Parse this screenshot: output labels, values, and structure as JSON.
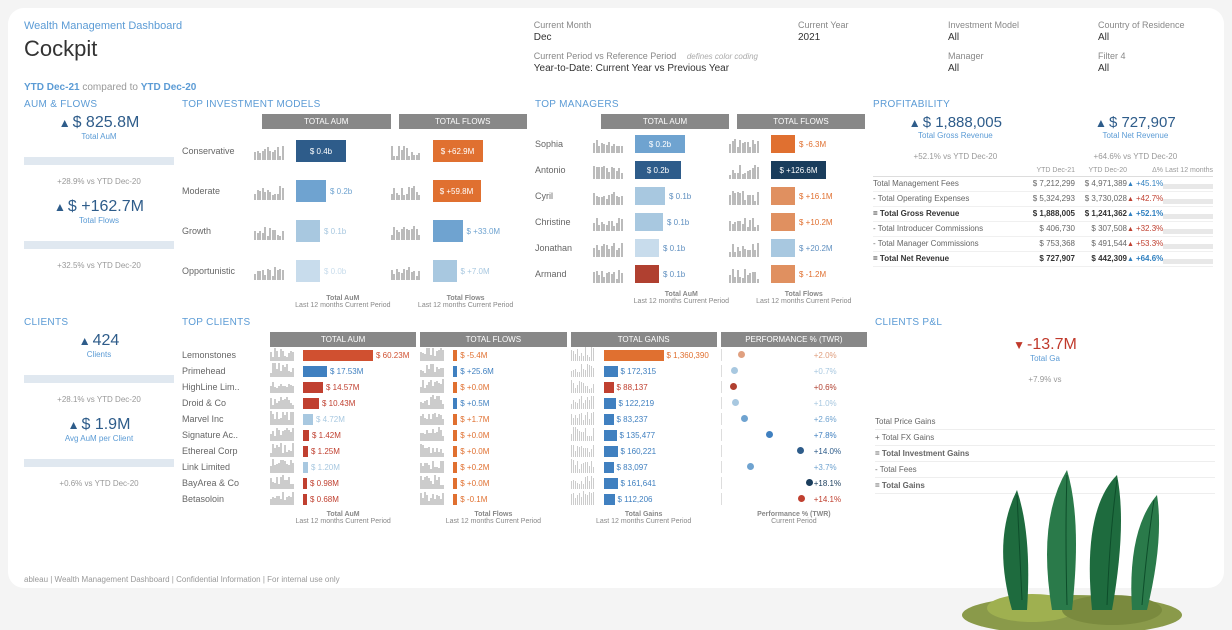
{
  "subtitle": "Wealth Management Dashboard",
  "title": "Cockpit",
  "filters": {
    "currentMonth": {
      "label": "Current Month",
      "value": "Dec"
    },
    "currentYear": {
      "label": "Current Year",
      "value": "2021"
    },
    "investmentModel": {
      "label": "Investment Model",
      "value": "All"
    },
    "countryOfResidence": {
      "label": "Country of Residence",
      "value": "All"
    },
    "periodRef": {
      "label": "Current Period vs Reference Period",
      "value": "Year-to-Date: Current Year vs Previous Year",
      "note": "defines color coding"
    },
    "manager": {
      "label": "Manager",
      "value": "All"
    },
    "filter4": {
      "label": "Filter 4",
      "value": "All"
    }
  },
  "periodLine": {
    "prefix": "YTD Dec-21",
    "mid": "compared to",
    "suffix": "YTD Dec-20"
  },
  "aumFlows": {
    "title": "AuM & FLOWS",
    "totalAum": {
      "value": "$ 825.8M",
      "label": "Total AuM",
      "compare": "+28.9% vs YTD Dec-20"
    },
    "totalFlows": {
      "value": "$ +162.7M",
      "label": "Total Flows",
      "compare": "+32.5% vs YTD Dec-20"
    }
  },
  "topModels": {
    "title": "TOP INVESTMENT MODELS",
    "hdrAum": "TOTAL AUM",
    "hdrFlows": "TOTAL FLOWS",
    "rows": [
      {
        "name": "Conservative",
        "aum": "$ 0.4b",
        "aumW": 50,
        "aumC": "#2e5c8a",
        "flows": "$ +62.9M",
        "flowsW": 50,
        "flowsC": "#e07030"
      },
      {
        "name": "Moderate",
        "aum": "$ 0.2b",
        "aumW": 30,
        "aumC": "#6fa3d0",
        "flows": "$ +59.8M",
        "flowsW": 48,
        "flowsC": "#e07030"
      },
      {
        "name": "Growth",
        "aum": "$ 0.1b",
        "aumW": 18,
        "aumC": "#a8c8e0",
        "flows": "$ +33.0M",
        "flowsW": 30,
        "flowsC": "#6fa3d0"
      },
      {
        "name": "Opportunistic",
        "aum": "$ 0.0b",
        "aumW": 8,
        "aumC": "#c8dcec",
        "flows": "$ +7.0M",
        "flowsW": 10,
        "flowsC": "#a8c8e0"
      }
    ],
    "foot": {
      "aum1": "Total AuM",
      "aum2": "Last 12 months Current Period",
      "fl1": "Total Flows",
      "fl2": "Last 12 months   Current Period"
    }
  },
  "topManagers": {
    "title": "TOP MANAGERS",
    "hdrAum": "TOTAL AUM",
    "hdrFlows": "TOTAL FLOWS",
    "rows": [
      {
        "name": "Sophia",
        "aum": "$ 0.2b",
        "aumW": 50,
        "aumC": "#6fa3d0",
        "flows": "$ -6.3M",
        "flowsW": 10,
        "flowsC": "#e07030",
        "flowsTxtC": "#e07030"
      },
      {
        "name": "Antonio",
        "aum": "$ 0.2b",
        "aumW": 46,
        "aumC": "#2e5c8a",
        "flows": "$ +126.6M",
        "flowsW": 55,
        "flowsC": "#1a3d5c",
        "flowsInside": true
      },
      {
        "name": "Cyril",
        "aum": "$ 0.1b",
        "aumW": 30,
        "aumC": "#a8c8e0",
        "flows": "$ +16.1M",
        "flowsW": 14,
        "flowsC": "#e09060",
        "flowsTxtC": "#e07030"
      },
      {
        "name": "Christine",
        "aum": "$ 0.1b",
        "aumW": 28,
        "aumC": "#a8c8e0",
        "flows": "$ +10.2M",
        "flowsW": 11,
        "flowsC": "#e09060",
        "flowsTxtC": "#e07030"
      },
      {
        "name": "Jonathan",
        "aum": "$ 0.1b",
        "aumW": 24,
        "aumC": "#c8dcec",
        "flows": "$ +20.2M",
        "flowsW": 18,
        "flowsC": "#a8c8e0",
        "flowsTxtC": "#6090c0"
      },
      {
        "name": "Armand",
        "aum": "$ 0.1b",
        "aumW": 22,
        "aumC": "#b04030",
        "flows": "$ -1.2M",
        "flowsW": 6,
        "flowsC": "#e09060",
        "flowsTxtC": "#e07030"
      }
    ],
    "foot": {
      "aum1": "Total AuM",
      "aum2": "Last 12 months   Current Period",
      "fl1": "Total Flows",
      "fl2": "Last 12 months   Current Period"
    }
  },
  "profitability": {
    "title": "PROFITABILITY",
    "gross": {
      "value": "$ 1,888,005",
      "label": "Total Gross Revenue",
      "compare": "+52.1% vs YTD Dec-20"
    },
    "net": {
      "value": "$ 727,907",
      "label": "Total Net Revenue",
      "compare": "+64.6% vs YTD Dec-20"
    },
    "tableHdr": {
      "c1": "",
      "c2": "YTD Dec-21",
      "c3": "YTD Dec-20",
      "c4": "Δ%",
      "c5": "Last 12 months"
    },
    "rows": [
      {
        "name": "Total Management Fees",
        "v1": "$ 7,212,299",
        "v2": "$ 4,971,389",
        "d": "+45.1%",
        "dC": "up"
      },
      {
        "name": "- Total Operating Expenses",
        "v1": "$ 5,324,293",
        "v2": "$ 3,730,028",
        "d": "+42.7%",
        "dC": "dn"
      },
      {
        "name": "= Total Gross Revenue",
        "v1": "$ 1,888,005",
        "v2": "$ 1,241,362",
        "d": "+52.1%",
        "dC": "up",
        "bold": true
      },
      {
        "name": "- Total Introducer Commissions",
        "v1": "$ 406,730",
        "v2": "$ 307,508",
        "d": "+32.3%",
        "dC": "dn"
      },
      {
        "name": "- Total Manager Commissions",
        "v1": "$ 753,368",
        "v2": "$ 491,544",
        "d": "+53.3%",
        "dC": "dn"
      },
      {
        "name": "= Total Net Revenue",
        "v1": "$ 727,907",
        "v2": "$ 442,309",
        "d": "+64.6%",
        "dC": "up",
        "bold": true
      }
    ]
  },
  "clients": {
    "title": "CLIENTS",
    "count": {
      "value": "424",
      "label": "Clients",
      "compare": "+28.1% vs YTD Dec-20"
    },
    "avg": {
      "value": "$ 1.9M",
      "label": "Avg AuM per Client",
      "compare": "+0.6% vs YTD Dec-20"
    }
  },
  "topClients": {
    "title": "TOP CLIENTS",
    "hdr": {
      "aum": "TOTAL AUM",
      "flows": "TOTAL FLOWS",
      "gains": "TOTAL GAINS",
      "perf": "PERFORMANCE % (TWR)"
    },
    "rows": [
      {
        "name": "Lemonstones",
        "aum": "$ 60.23M",
        "aumW": 70,
        "aumC": "#d05030",
        "flows": "$ -5.4M",
        "flowsC": "#e07030",
        "gains": "$ 1,360,390",
        "gainsW": 60,
        "gainsC": "#e07030",
        "perf": "+2.0%",
        "perfC": "#e0a080",
        "perfP": 18
      },
      {
        "name": "Primehead",
        "aum": "$ 17.53M",
        "aumW": 24,
        "aumC": "#4080c0",
        "flows": "$ +25.6M",
        "flowsC": "#4080c0",
        "gains": "$ 172,315",
        "gainsW": 14,
        "gainsC": "#4080c0",
        "perf": "+0.7%",
        "perfC": "#a8c8e0",
        "perfP": 10
      },
      {
        "name": "HighLine Lim..",
        "aum": "$ 14.57M",
        "aumW": 20,
        "aumC": "#c04030",
        "flows": "$ +0.0M",
        "flowsC": "#e07030",
        "gains": "$ 88,137",
        "gainsW": 10,
        "gainsC": "#c04030",
        "perf": "+0.6%",
        "perfC": "#b04030",
        "perfP": 9
      },
      {
        "name": "Droid & Co",
        "aum": "$ 10.43M",
        "aumW": 16,
        "aumC": "#c04030",
        "flows": "$ +0.5M",
        "flowsC": "#4080c0",
        "gains": "$ 122,219",
        "gainsW": 12,
        "gainsC": "#4080c0",
        "perf": "+1.0%",
        "perfC": "#a8c8e0",
        "perfP": 12
      },
      {
        "name": "Marvel Inc",
        "aum": "$ 4.72M",
        "aumW": 10,
        "aumC": "#a8c8e0",
        "flows": "$ +1.7M",
        "flowsC": "#e07030",
        "gains": "$ 83,237",
        "gainsW": 10,
        "gainsC": "#4080c0",
        "perf": "+2.6%",
        "perfC": "#6fa3d0",
        "perfP": 22
      },
      {
        "name": "Signature Ac..",
        "aum": "$ 1.42M",
        "aumW": 6,
        "aumC": "#c04030",
        "flows": "$ +0.0M",
        "flowsC": "#e07030",
        "gains": "$ 135,477",
        "gainsW": 13,
        "gainsC": "#4080c0",
        "perf": "+7.8%",
        "perfC": "#4080c0",
        "perfP": 50
      },
      {
        "name": "Ethereal Corp",
        "aum": "$ 1.25M",
        "aumW": 5,
        "aumC": "#c04030",
        "flows": "$ +0.0M",
        "flowsC": "#e07030",
        "gains": "$ 160,221",
        "gainsW": 14,
        "gainsC": "#4080c0",
        "perf": "+14.0%",
        "perfC": "#2e5c8a",
        "perfP": 85
      },
      {
        "name": "Link Limited",
        "aum": "$ 1.20M",
        "aumW": 5,
        "aumC": "#a8c8e0",
        "flows": "$ +0.2M",
        "flowsC": "#e07030",
        "gains": "$ 83,097",
        "gainsW": 10,
        "gainsC": "#4080c0",
        "perf": "+3.7%",
        "perfC": "#6fa3d0",
        "perfP": 28
      },
      {
        "name": "BayArea & Co",
        "aum": "$ 0.98M",
        "aumW": 4,
        "aumC": "#c04030",
        "flows": "$ +0.0M",
        "flowsC": "#e07030",
        "gains": "$ 161,641",
        "gainsW": 14,
        "gainsC": "#4080c0",
        "perf": "+18.1%",
        "perfC": "#1a3d5c",
        "perfP": 95
      },
      {
        "name": "Betasoloin",
        "aum": "$ 0.68M",
        "aumW": 4,
        "aumC": "#c04030",
        "flows": "$ -0.1M",
        "flowsC": "#e07030",
        "gains": "$ 112,206",
        "gainsW": 11,
        "gainsC": "#4080c0",
        "perf": "+14.1%",
        "perfC": "#c04030",
        "perfP": 86
      }
    ],
    "foot": {
      "aum": "Total AuM",
      "aum2": "Last 12 months Current Period",
      "fl": "Total Flows",
      "fl2": "Last 12 months   Current Period",
      "gn": "Total Gains",
      "gn2": "Last 12 months   Current Period",
      "pf": "Performance % (TWR)",
      "pf2": "Current Period"
    }
  },
  "clientsPL": {
    "title": "CLIENTS P&L",
    "kpi": {
      "value": "-13.7M",
      "label": "Total Ga",
      "compare": "+7.9% vs"
    },
    "rows": [
      {
        "name": "Total Price Gains"
      },
      {
        "name": "+ Total FX Gains"
      },
      {
        "name": "= Total Investment Gains",
        "bold": true
      },
      {
        "name": "- Total Fees"
      },
      {
        "name": "= Total Gains",
        "bold": true
      }
    ]
  },
  "footer": "ableau | Wealth Management Dashboard | Confidential Information | For internal use only"
}
